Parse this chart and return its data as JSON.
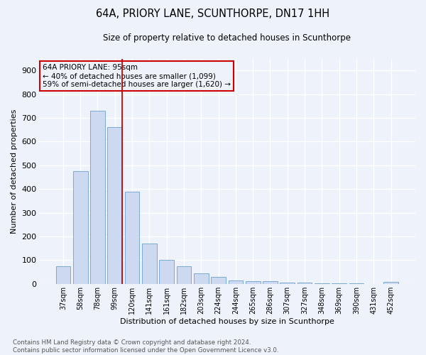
{
  "title": "64A, PRIORY LANE, SCUNTHORPE, DN17 1HH",
  "subtitle": "Size of property relative to detached houses in Scunthorpe",
  "xlabel": "Distribution of detached houses by size in Scunthorpe",
  "ylabel": "Number of detached properties",
  "footer1": "Contains HM Land Registry data © Crown copyright and database right 2024.",
  "footer2": "Contains public sector information licensed under the Open Government Licence v3.0.",
  "annotation_line1": "64A PRIORY LANE: 95sqm",
  "annotation_line2": "← 40% of detached houses are smaller (1,099)",
  "annotation_line3": "59% of semi-detached houses are larger (1,620) →",
  "bar_labels": [
    "37sqm",
    "58sqm",
    "78sqm",
    "99sqm",
    "120sqm",
    "141sqm",
    "161sqm",
    "182sqm",
    "203sqm",
    "224sqm",
    "244sqm",
    "265sqm",
    "286sqm",
    "307sqm",
    "327sqm",
    "348sqm",
    "369sqm",
    "390sqm",
    "431sqm",
    "452sqm"
  ],
  "bar_values": [
    75,
    475,
    730,
    660,
    390,
    170,
    100,
    75,
    45,
    30,
    15,
    12,
    10,
    5,
    4,
    3,
    2,
    1,
    0,
    8
  ],
  "bar_color": "#ccd9f0",
  "bar_edge_color": "#7aaad4",
  "vline_x": 3.42,
  "vline_color": "#cc0000",
  "ylim": [
    0,
    950
  ],
  "yticks": [
    0,
    100,
    200,
    300,
    400,
    500,
    600,
    700,
    800,
    900
  ],
  "annotation_box_color": "#cc0000",
  "background_color": "#eef2fb",
  "grid_color": "#ffffff"
}
